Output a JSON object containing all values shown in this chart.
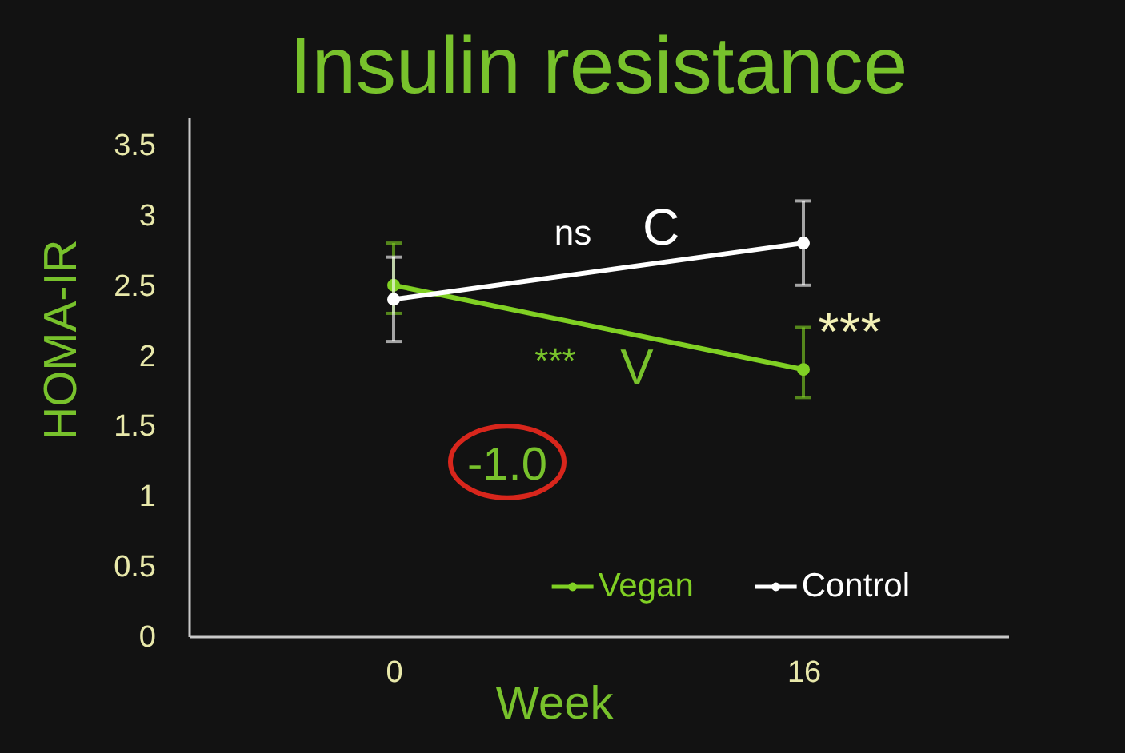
{
  "chart_data": {
    "type": "line",
    "title": "Insulin resistance",
    "xlabel": "Week",
    "ylabel": "HOMA-IR",
    "categories": [
      "0",
      "16"
    ],
    "series": [
      {
        "name": "Vegan",
        "color": "#80d024",
        "values": [
          2.5,
          1.9
        ],
        "errors": [
          [
            2.3,
            2.8
          ],
          [
            1.7,
            2.2
          ]
        ]
      },
      {
        "name": "Control",
        "color": "#ffffff",
        "values": [
          2.4,
          2.8
        ],
        "errors": [
          [
            2.1,
            2.7
          ],
          [
            2.5,
            3.1
          ]
        ]
      }
    ],
    "ylim": [
      0,
      3.7
    ],
    "yticks": [
      0,
      0.5,
      1,
      1.5,
      2,
      2.5,
      3,
      3.5
    ],
    "legend": "bottom",
    "marker": "circle",
    "line_style": "solid",
    "annotations": [
      "ns",
      "C",
      "***",
      "V",
      "***",
      "-1.0"
    ]
  }
}
